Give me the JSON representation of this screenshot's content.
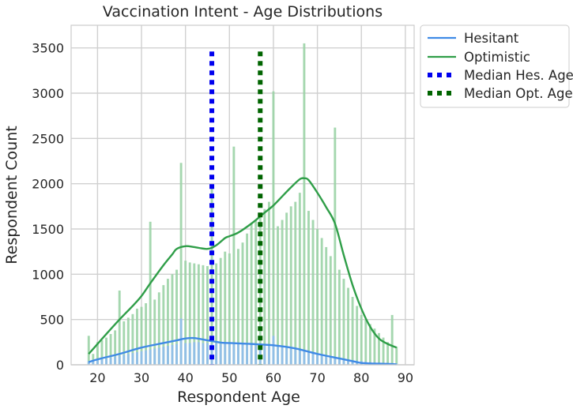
{
  "chart_data": {
    "type": "bar",
    "title": "Vaccination Intent - Age Distributions",
    "xlabel": "Respondent Age",
    "ylabel": "Respondent Count",
    "xlim": [
      14,
      92
    ],
    "ylim": [
      0,
      3750
    ],
    "xticks": [
      20,
      30,
      40,
      50,
      60,
      70,
      80,
      90
    ],
    "yticks": [
      0,
      500,
      1000,
      1500,
      2000,
      2500,
      3000,
      3500
    ],
    "grid": true,
    "legend_placement": "outside-top-right",
    "colors": {
      "hesitant_line": "#3f8ae6",
      "hesitant_bar": "#8fbcec",
      "optimistic_line": "#2f9e48",
      "optimistic_bar": "#9bd3a6",
      "median_hesitant": "#0000ee",
      "median_optimistic": "#006400",
      "grid": "#d0d0d0"
    },
    "histograms": {
      "x": [
        18,
        19,
        20,
        21,
        22,
        23,
        24,
        25,
        26,
        27,
        28,
        29,
        30,
        31,
        32,
        33,
        34,
        35,
        36,
        37,
        38,
        39,
        40,
        41,
        42,
        43,
        44,
        45,
        46,
        47,
        48,
        49,
        50,
        51,
        52,
        53,
        54,
        55,
        56,
        57,
        58,
        59,
        60,
        61,
        62,
        63,
        64,
        65,
        66,
        67,
        68,
        69,
        70,
        71,
        72,
        73,
        74,
        75,
        76,
        77,
        78,
        79,
        80,
        81,
        82,
        83,
        84,
        85,
        86,
        87,
        88
      ],
      "series": [
        {
          "name": "Optimistic",
          "values": [
            320,
            120,
            250,
            270,
            300,
            340,
            380,
            820,
            480,
            520,
            560,
            620,
            640,
            680,
            1580,
            720,
            800,
            880,
            950,
            1000,
            1050,
            2230,
            1150,
            1130,
            1120,
            1110,
            1100,
            1090,
            1950,
            1120,
            1180,
            1250,
            1230,
            2410,
            1280,
            1350,
            1450,
            1560,
            1600,
            1650,
            1720,
            1800,
            3020,
            1530,
            1600,
            1680,
            1750,
            1800,
            1900,
            3550,
            1700,
            1600,
            1500,
            1400,
            1300,
            1200,
            2620,
            1050,
            950,
            850,
            750,
            650,
            550,
            500,
            450,
            400,
            350,
            300,
            250,
            550,
            200
          ]
        },
        {
          "name": "Hesitant",
          "values": [
            40,
            40,
            60,
            60,
            70,
            80,
            90,
            100,
            110,
            120,
            130,
            140,
            150,
            160,
            170,
            180,
            190,
            200,
            210,
            220,
            230,
            510,
            240,
            240,
            250,
            250,
            240,
            240,
            230,
            240,
            230,
            250,
            240,
            230,
            230,
            240,
            220,
            230,
            230,
            220,
            220,
            210,
            320,
            210,
            200,
            190,
            180,
            170,
            160,
            150,
            140,
            130,
            120,
            110,
            100,
            90,
            80,
            70,
            60,
            55,
            50,
            45,
            40,
            35,
            30,
            28,
            25,
            22,
            20,
            18,
            15
          ]
        }
      ]
    },
    "kde": [
      {
        "name": "Hesitant",
        "x": [
          18,
          20,
          25,
          30,
          35,
          38,
          40,
          42,
          45,
          48,
          50,
          55,
          60,
          65,
          70,
          75,
          78,
          80,
          82,
          84,
          86,
          88
        ],
        "y": [
          30,
          60,
          120,
          190,
          240,
          270,
          290,
          295,
          270,
          245,
          240,
          230,
          215,
          180,
          120,
          70,
          40,
          20,
          15,
          12,
          10,
          5
        ]
      },
      {
        "name": "Optimistic",
        "x": [
          18,
          20,
          22,
          25,
          28,
          30,
          32,
          35,
          37,
          38,
          40,
          42,
          45,
          47,
          49,
          50,
          52,
          55,
          58,
          60,
          62,
          64,
          66,
          67,
          68,
          70,
          72,
          74,
          76,
          78,
          80,
          82,
          84,
          86,
          88
        ],
        "y": [
          120,
          230,
          340,
          500,
          650,
          760,
          900,
          1100,
          1220,
          1280,
          1310,
          1300,
          1280,
          1320,
          1400,
          1420,
          1460,
          1560,
          1680,
          1760,
          1860,
          1960,
          2050,
          2060,
          2040,
          1900,
          1740,
          1560,
          1210,
          880,
          620,
          420,
          290,
          230,
          190
        ]
      }
    ],
    "medians": [
      {
        "name": "Median Hes. Age",
        "x": 46,
        "top": 3460
      },
      {
        "name": "Median Opt. Age",
        "x": 57,
        "top": 3460
      }
    ],
    "legend": [
      "Hesitant",
      "Optimistic",
      "Median Hes. Age",
      "Median Opt. Age"
    ]
  }
}
